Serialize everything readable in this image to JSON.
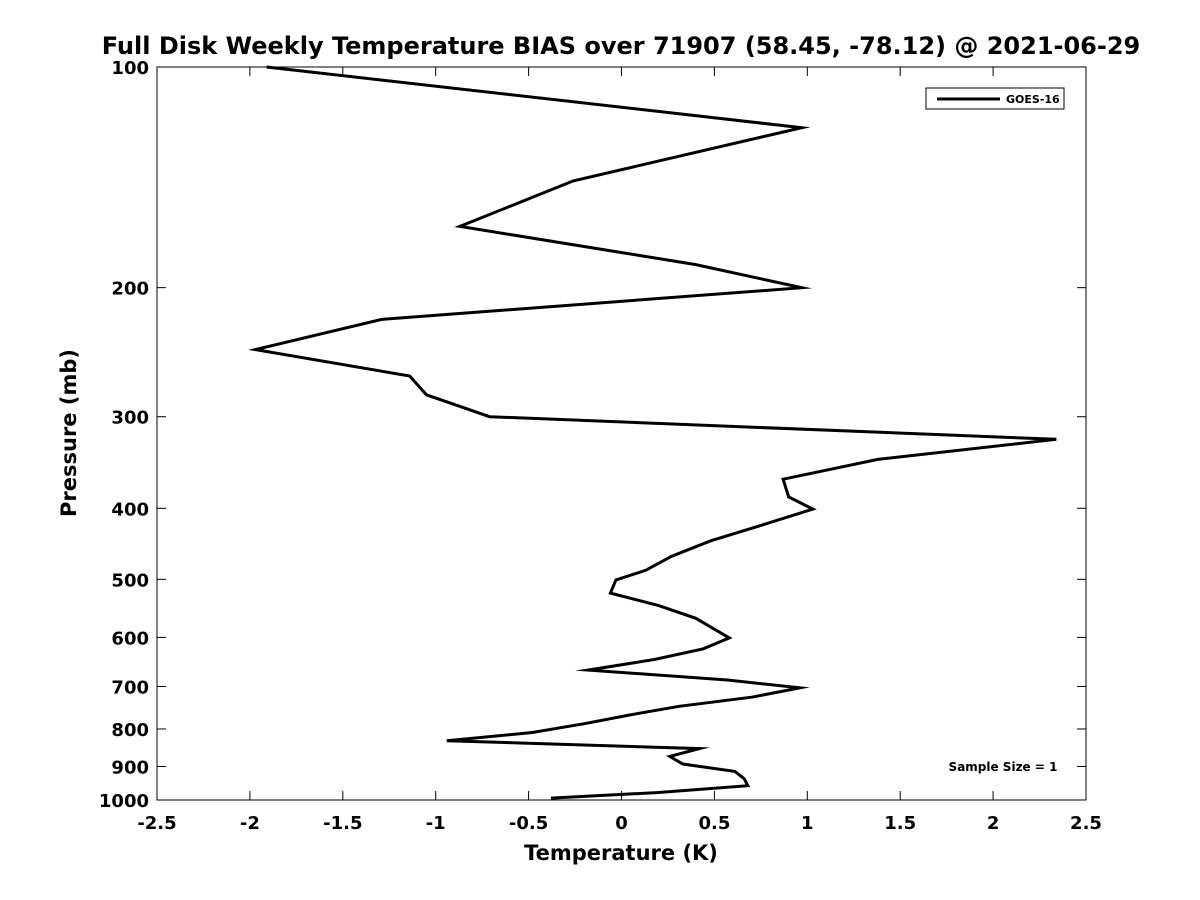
{
  "chart_data": {
    "type": "line",
    "title": "Full Disk Weekly Temperature BIAS over 71907 (58.45, -78.12) @ 2021-06-29",
    "xlabel": "Temperature (K)",
    "ylabel": "Pressure (mb)",
    "xlim": [
      -2.5,
      2.5
    ],
    "ylim": [
      100,
      1000
    ],
    "yscale": "log",
    "yreversed": true,
    "grid": false,
    "legend_position": "top-right",
    "x_ticks": [
      "-2.5",
      "-2",
      "-1.5",
      "-1",
      "-0.5",
      "0",
      "0.5",
      "1",
      "1.5",
      "2",
      "2.5"
    ],
    "x_tick_values": [
      -2.5,
      -2,
      -1.5,
      -1,
      -0.5,
      0,
      0.5,
      1,
      1.5,
      2,
      2.5
    ],
    "y_ticks": [
      "100",
      "200",
      "300",
      "400",
      "500",
      "600",
      "700",
      "800",
      "900",
      "1000"
    ],
    "y_tick_values": [
      100,
      200,
      300,
      400,
      500,
      600,
      700,
      800,
      900,
      1000
    ],
    "series": [
      {
        "name": "GOES-16",
        "color": "#000000",
        "points": [
          {
            "x": -1.91,
            "p": 100
          },
          {
            "x": 0.97,
            "p": 121
          },
          {
            "x": -0.26,
            "p": 143
          },
          {
            "x": -0.87,
            "p": 165
          },
          {
            "x": 0.4,
            "p": 186
          },
          {
            "x": 0.97,
            "p": 200
          },
          {
            "x": -1.29,
            "p": 221
          },
          {
            "x": -1.97,
            "p": 243
          },
          {
            "x": -1.14,
            "p": 264
          },
          {
            "x": -1.05,
            "p": 280
          },
          {
            "x": -0.71,
            "p": 300
          },
          {
            "x": 2.34,
            "p": 322
          },
          {
            "x": 1.38,
            "p": 343
          },
          {
            "x": 0.87,
            "p": 365
          },
          {
            "x": 0.9,
            "p": 386
          },
          {
            "x": 1.03,
            "p": 401
          },
          {
            "x": 0.75,
            "p": 422
          },
          {
            "x": 0.48,
            "p": 443
          },
          {
            "x": 0.27,
            "p": 465
          },
          {
            "x": 0.13,
            "p": 486
          },
          {
            "x": -0.03,
            "p": 501
          },
          {
            "x": -0.06,
            "p": 522
          },
          {
            "x": 0.2,
            "p": 543
          },
          {
            "x": 0.4,
            "p": 565
          },
          {
            "x": 0.58,
            "p": 601
          },
          {
            "x": 0.44,
            "p": 622
          },
          {
            "x": 0.18,
            "p": 643
          },
          {
            "x": -0.18,
            "p": 665
          },
          {
            "x": 0.57,
            "p": 686
          },
          {
            "x": 0.96,
            "p": 703
          },
          {
            "x": 0.7,
            "p": 724
          },
          {
            "x": 0.31,
            "p": 745
          },
          {
            "x": 0.04,
            "p": 766
          },
          {
            "x": -0.2,
            "p": 787
          },
          {
            "x": -0.48,
            "p": 809
          },
          {
            "x": -0.94,
            "p": 830
          },
          {
            "x": 0.42,
            "p": 851
          },
          {
            "x": 0.26,
            "p": 872
          },
          {
            "x": 0.33,
            "p": 893
          },
          {
            "x": 0.61,
            "p": 914
          },
          {
            "x": 0.66,
            "p": 935
          },
          {
            "x": 0.68,
            "p": 956
          },
          {
            "x": 0.19,
            "p": 977
          },
          {
            "x": -0.38,
            "p": 994
          }
        ]
      }
    ],
    "annotations": [
      {
        "text": "Sample Size = 1",
        "position": "bottom-right"
      }
    ]
  }
}
